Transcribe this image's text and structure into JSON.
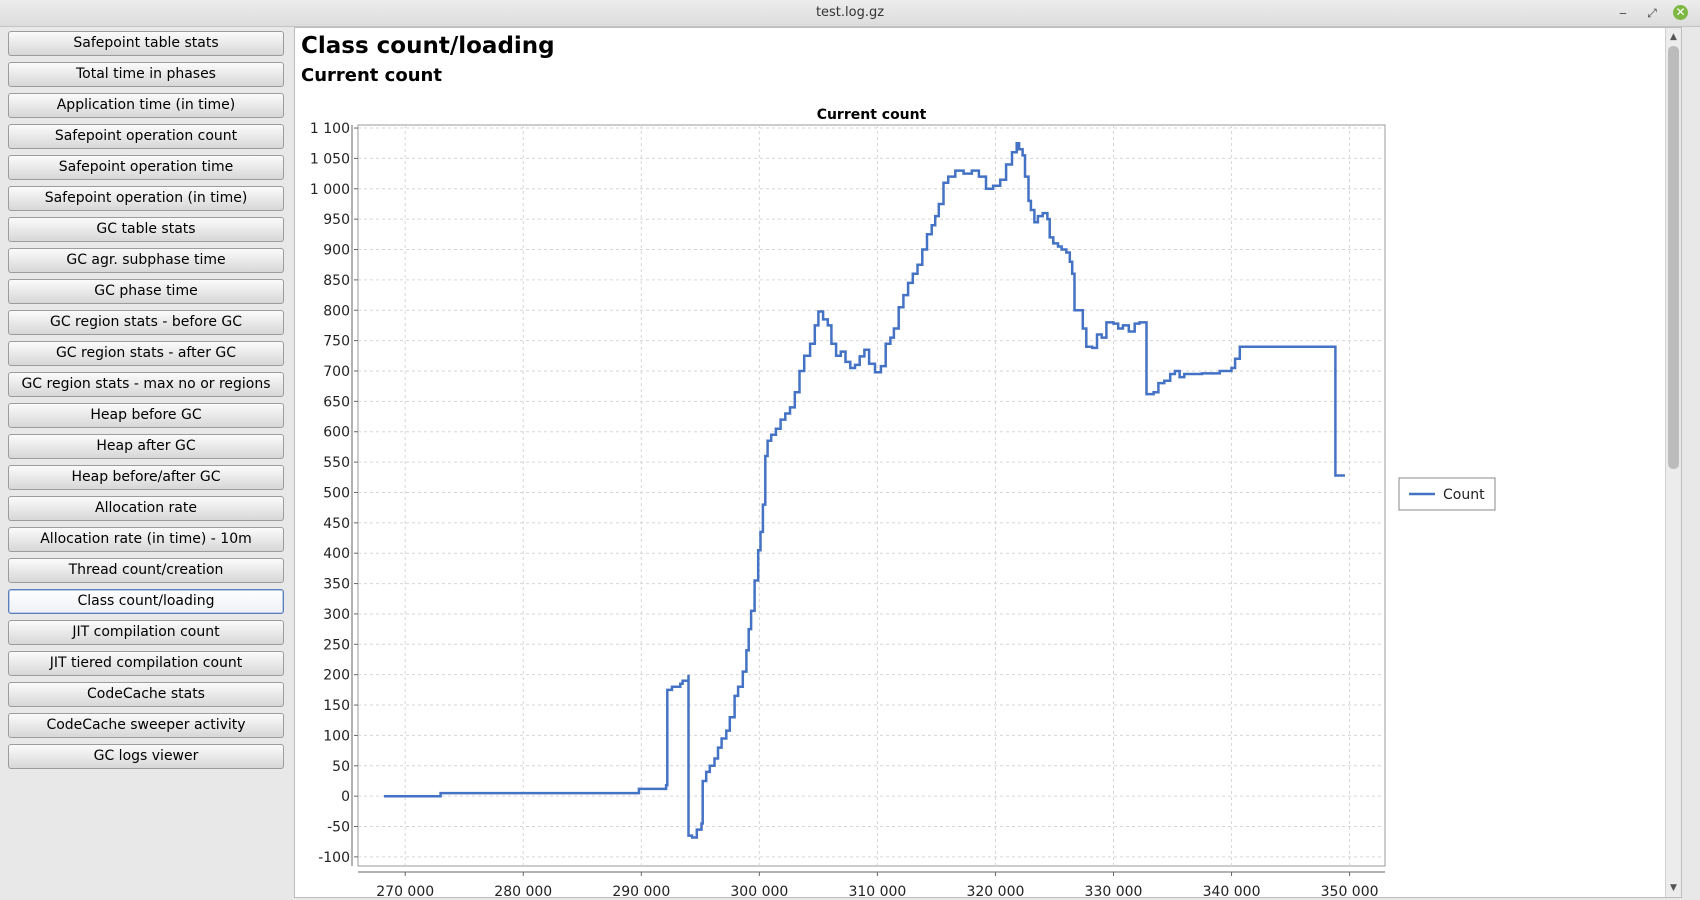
{
  "window": {
    "title": "test.log.gz",
    "minimize_glyph": "‒",
    "restore_glyph": "⤢",
    "close_glyph": "✕"
  },
  "sidebar": {
    "items": [
      {
        "label": "Safepoint table stats"
      },
      {
        "label": "Total time in phases"
      },
      {
        "label": "Application time (in time)"
      },
      {
        "label": "Safepoint operation count"
      },
      {
        "label": "Safepoint operation time"
      },
      {
        "label": "Safepoint operation (in time)"
      },
      {
        "label": "GC table stats"
      },
      {
        "label": "GC agr. subphase time"
      },
      {
        "label": "GC phase time"
      },
      {
        "label": "GC region stats - before GC"
      },
      {
        "label": "GC region stats - after GC"
      },
      {
        "label": "GC region stats - max no or regions"
      },
      {
        "label": "Heap before GC"
      },
      {
        "label": "Heap after GC"
      },
      {
        "label": "Heap before/after GC"
      },
      {
        "label": "Allocation rate"
      },
      {
        "label": "Allocation rate (in time) - 10m"
      },
      {
        "label": "Thread count/creation"
      },
      {
        "label": "Class count/loading",
        "active": true
      },
      {
        "label": "JIT compilation count"
      },
      {
        "label": "JIT tiered compilation count"
      },
      {
        "label": "CodeCache stats"
      },
      {
        "label": "CodeCache sweeper activity"
      },
      {
        "label": "GC logs viewer"
      }
    ]
  },
  "main": {
    "title": "Class count/loading",
    "subtitle": "Current count"
  },
  "scrollbar": {
    "up_glyph": "▲",
    "down_glyph": "▼"
  },
  "colors": {
    "series": "#4472c4",
    "grid": "#d6d6d6"
  },
  "chart_data": {
    "type": "line",
    "title": "Current count",
    "xlabel": "",
    "ylabel": "",
    "xlim": [
      266000,
      353000
    ],
    "ylim": [
      -115,
      1105
    ],
    "x_ticks": [
      270000,
      280000,
      290000,
      300000,
      310000,
      320000,
      330000,
      340000,
      350000
    ],
    "x_tick_labels": [
      "270 000",
      "280 000",
      "290 000",
      "300 000",
      "310 000",
      "320 000",
      "330 000",
      "340 000",
      "350 000"
    ],
    "y_ticks": [
      -100,
      -50,
      0,
      50,
      100,
      150,
      200,
      250,
      300,
      350,
      400,
      450,
      500,
      550,
      600,
      650,
      700,
      750,
      800,
      850,
      900,
      950,
      1000,
      1050,
      1100
    ],
    "y_tick_labels": [
      "-100",
      "-50",
      "0",
      "50",
      "100",
      "150",
      "200",
      "250",
      "300",
      "350",
      "400",
      "450",
      "500",
      "550",
      "600",
      "650",
      "700",
      "750",
      "800",
      "850",
      "900",
      "950",
      "1 000",
      "1 050",
      "1 100"
    ],
    "grid": true,
    "legend_position": "right",
    "series": [
      {
        "name": "Count",
        "step": true,
        "points": [
          [
            268200,
            0
          ],
          [
            273000,
            0
          ],
          [
            273000,
            5
          ],
          [
            285000,
            5
          ],
          [
            289800,
            7
          ],
          [
            289800,
            12
          ],
          [
            292000,
            12
          ],
          [
            292100,
            18
          ],
          [
            292200,
            175
          ],
          [
            292600,
            180
          ],
          [
            293300,
            185
          ],
          [
            293500,
            190
          ],
          [
            294000,
            200
          ],
          [
            294000,
            -65
          ],
          [
            294300,
            -68
          ],
          [
            294700,
            -55
          ],
          [
            295100,
            -45
          ],
          [
            295200,
            25
          ],
          [
            295500,
            40
          ],
          [
            295800,
            50
          ],
          [
            296200,
            62
          ],
          [
            296500,
            80
          ],
          [
            296800,
            95
          ],
          [
            297200,
            108
          ],
          [
            297500,
            130
          ],
          [
            297900,
            165
          ],
          [
            298200,
            180
          ],
          [
            298600,
            205
          ],
          [
            298900,
            240
          ],
          [
            299100,
            275
          ],
          [
            299300,
            305
          ],
          [
            299600,
            355
          ],
          [
            299900,
            405
          ],
          [
            300100,
            435
          ],
          [
            300300,
            480
          ],
          [
            300500,
            560
          ],
          [
            300700,
            585
          ],
          [
            301000,
            595
          ],
          [
            301400,
            605
          ],
          [
            301800,
            620
          ],
          [
            302200,
            630
          ],
          [
            302600,
            640
          ],
          [
            303000,
            665
          ],
          [
            303400,
            700
          ],
          [
            303800,
            725
          ],
          [
            304300,
            745
          ],
          [
            304700,
            775
          ],
          [
            305000,
            798
          ],
          [
            305400,
            785
          ],
          [
            305800,
            775
          ],
          [
            306100,
            745
          ],
          [
            306500,
            725
          ],
          [
            306900,
            732
          ],
          [
            307300,
            715
          ],
          [
            307700,
            705
          ],
          [
            308100,
            710
          ],
          [
            308500,
            724
          ],
          [
            308900,
            735
          ],
          [
            309300,
            712
          ],
          [
            309800,
            698
          ],
          [
            310300,
            708
          ],
          [
            310700,
            745
          ],
          [
            311100,
            755
          ],
          [
            311400,
            770
          ],
          [
            311800,
            805
          ],
          [
            312200,
            825
          ],
          [
            312600,
            845
          ],
          [
            313000,
            860
          ],
          [
            313400,
            875
          ],
          [
            313800,
            900
          ],
          [
            314200,
            925
          ],
          [
            314600,
            940
          ],
          [
            314900,
            955
          ],
          [
            315200,
            975
          ],
          [
            315600,
            1010
          ],
          [
            316000,
            1020
          ],
          [
            316600,
            1030
          ],
          [
            317300,
            1025
          ],
          [
            318000,
            1030
          ],
          [
            318600,
            1020
          ],
          [
            319200,
            1000
          ],
          [
            319800,
            1005
          ],
          [
            320400,
            1015
          ],
          [
            320900,
            1040
          ],
          [
            321400,
            1060
          ],
          [
            321800,
            1075
          ],
          [
            322000,
            1065
          ],
          [
            322300,
            1055
          ],
          [
            322500,
            1020
          ],
          [
            322800,
            980
          ],
          [
            323000,
            965
          ],
          [
            323300,
            945
          ],
          [
            323600,
            955
          ],
          [
            324000,
            960
          ],
          [
            324400,
            950
          ],
          [
            324600,
            920
          ],
          [
            324900,
            910
          ],
          [
            325300,
            905
          ],
          [
            325600,
            900
          ],
          [
            326000,
            895
          ],
          [
            326300,
            880
          ],
          [
            326500,
            860
          ],
          [
            326700,
            800
          ],
          [
            327000,
            800
          ],
          [
            327400,
            770
          ],
          [
            327700,
            740
          ],
          [
            328200,
            738
          ],
          [
            328600,
            760
          ],
          [
            329000,
            755
          ],
          [
            329400,
            780
          ],
          [
            330000,
            778
          ],
          [
            330400,
            770
          ],
          [
            330800,
            775
          ],
          [
            331300,
            765
          ],
          [
            331800,
            778
          ],
          [
            332200,
            780
          ],
          [
            332500,
            780
          ],
          [
            332800,
            662
          ],
          [
            333400,
            665
          ],
          [
            333800,
            680
          ],
          [
            334300,
            684
          ],
          [
            334800,
            695
          ],
          [
            335200,
            700
          ],
          [
            335600,
            690
          ],
          [
            336000,
            695
          ],
          [
            337500,
            696
          ],
          [
            339000,
            700
          ],
          [
            340000,
            705
          ],
          [
            340300,
            720
          ],
          [
            340700,
            740
          ],
          [
            348800,
            742
          ],
          [
            348800,
            528
          ],
          [
            349500,
            530
          ]
        ]
      }
    ]
  }
}
